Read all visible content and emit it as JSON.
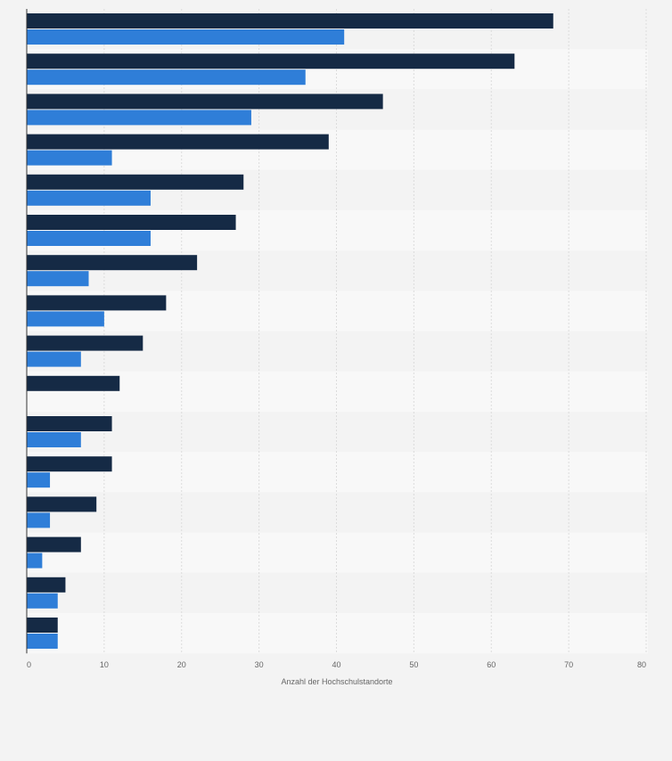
{
  "chart_data": {
    "type": "bar",
    "orientation": "horizontal",
    "title": "",
    "xlabel": "Anzahl der Hochschulstandorte",
    "ylabel": "",
    "xlim": [
      0,
      80
    ],
    "x_ticks": [
      0,
      10,
      20,
      30,
      40,
      50,
      60,
      70,
      80
    ],
    "grid": true,
    "legend": "none",
    "categories": [
      "",
      "",
      "",
      "",
      "",
      "",
      "",
      "",
      "",
      "",
      "",
      "",
      "",
      "",
      "",
      ""
    ],
    "series": [
      {
        "color": "#152a45",
        "values": [
          68,
          63,
          46,
          39,
          28,
          27,
          22,
          18,
          15,
          12,
          11,
          11,
          9,
          7,
          5,
          4
        ]
      },
      {
        "color": "#2f7ed8",
        "values": [
          41,
          36,
          29,
          11,
          16,
          16,
          8,
          10,
          7,
          null,
          7,
          3,
          3,
          2,
          4,
          4
        ]
      }
    ]
  }
}
